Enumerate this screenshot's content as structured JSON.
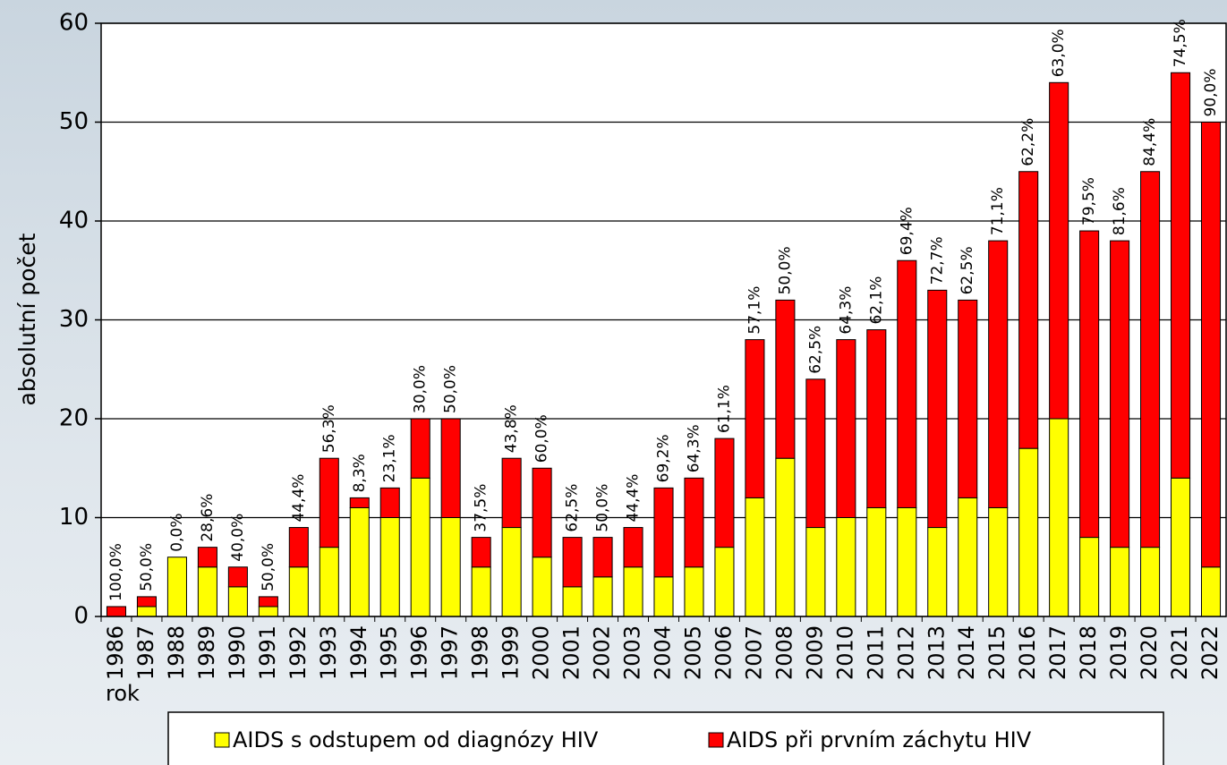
{
  "chart_data": {
    "type": "stacked_bar",
    "y_axis_label": "absolutní počet",
    "x_axis_label": "rok",
    "categories": [
      "1986",
      "1987",
      "1988",
      "1989",
      "1990",
      "1991",
      "1992",
      "1993",
      "1994",
      "1995",
      "1996",
      "1997",
      "1998",
      "1999",
      "2000",
      "2001",
      "2002",
      "2003",
      "2004",
      "2005",
      "2006",
      "2007",
      "2008",
      "2009",
      "2010",
      "2011",
      "2012",
      "2013",
      "2014",
      "2015",
      "2016",
      "2017",
      "2018",
      "2019",
      "2020",
      "2021",
      "2022"
    ],
    "series": [
      {
        "name": "AIDS s odstupem od diagnózy HIV",
        "color": "#ffff00",
        "values": [
          0,
          1,
          6,
          5,
          3,
          1,
          5,
          7,
          11,
          10,
          14,
          10,
          5,
          9,
          6,
          3,
          4,
          5,
          4,
          5,
          7,
          12,
          16,
          9,
          10,
          11,
          11,
          9,
          12,
          11,
          17,
          20,
          8,
          7,
          7,
          14,
          5
        ]
      },
      {
        "name": "AIDS při prvním záchytu HIV",
        "color": "#ff0000",
        "values": [
          1,
          1,
          0,
          2,
          2,
          1,
          4,
          9,
          1,
          3,
          6,
          10,
          3,
          7,
          9,
          5,
          4,
          4,
          9,
          9,
          11,
          16,
          16,
          15,
          18,
          18,
          25,
          24,
          20,
          27,
          28,
          34,
          31,
          31,
          38,
          41,
          45
        ]
      }
    ],
    "percent_labels": [
      "100,0%",
      "50,0%",
      "0,0%",
      "28,6%",
      "40,0%",
      "50,0%",
      "44,4%",
      "56,3%",
      "8,3%",
      "23,1%",
      "30,0%",
      "50,0%",
      "37,5%",
      "43,8%",
      "60,0%",
      "62,5%",
      "50,0%",
      "44,4%",
      "69,2%",
      "64,3%",
      "61,1%",
      "57,1%",
      "50,0%",
      "62,5%",
      "64,3%",
      "62,1%",
      "69,4%",
      "72,7%",
      "62,5%",
      "71,1%",
      "62,2%",
      "63,0%",
      "79,5%",
      "81,6%",
      "84,4%",
      "74,5%",
      "90,0%"
    ],
    "ylim": [
      0,
      60
    ],
    "yticks": [
      0,
      10,
      20,
      30,
      40,
      50,
      60
    ],
    "grid": true
  }
}
